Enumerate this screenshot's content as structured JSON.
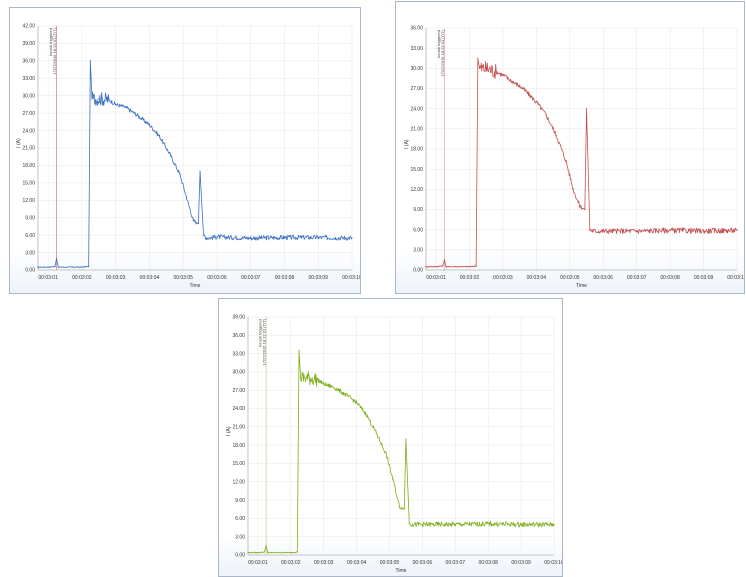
{
  "panels": [
    {
      "color": "#3a6fc4",
      "marker_color": "#e07070",
      "ylabel": "I (A)",
      "xlabel": "Time",
      "annotation_line1": "Inrush triggered",
      "annotation_line2": "17/27/2016 18:22:01 (T/T)",
      "yticks": [
        "0.00",
        "3.00",
        "6.00",
        "9.00",
        "12.00",
        "15.00",
        "18.00",
        "21.00",
        "24.00",
        "27.00",
        "30.00",
        "33.00",
        "36.00",
        "39.00",
        "42.00"
      ],
      "xticks": [
        "00:03:01",
        "00:03:02",
        "00:03:03",
        "00:03:04",
        "00:03:05",
        "00:03:06",
        "00:03:07",
        "00:03:08",
        "00:03:09",
        "00:03:10"
      ]
    },
    {
      "color": "#c45050",
      "marker_color": "#e8a0a0",
      "ylabel": "I (A)",
      "xlabel": "Time",
      "annotation_line1": "Inrush triggered",
      "annotation_line2": "17/27/2016 18:22:01 (T/T)",
      "yticks": [
        "0.00",
        "3.00",
        "6.00",
        "9.00",
        "12.00",
        "15.00",
        "18.00",
        "21.00",
        "24.00",
        "27.00",
        "30.00",
        "33.00",
        "36.00"
      ],
      "xticks": [
        "00:03:01",
        "00:03:02",
        "00:03:03",
        "00:03:04",
        "00:03:05",
        "00:03:06",
        "00:03:07",
        "00:03:08",
        "00:03:09",
        "00:03:10"
      ]
    },
    {
      "color": "#7fae1a",
      "marker_color": "#b8d080",
      "ylabel": "I (A)",
      "xlabel": "Time",
      "annotation_line1": "Inrush triggered",
      "annotation_line2": "17/27/2016 18:22:01 (T/T)",
      "yticks": [
        "0.00",
        "3.00",
        "6.00",
        "9.00",
        "12.00",
        "15.00",
        "18.00",
        "21.00",
        "24.00",
        "27.00",
        "30.00",
        "33.00",
        "36.00",
        "39.00"
      ],
      "xticks": [
        "00:03:01",
        "00:03:02",
        "00:03:03",
        "00:03:04",
        "00:03:05",
        "00:03:06",
        "00:03:07",
        "00:03:08",
        "00:03:09",
        "00:03:10"
      ]
    }
  ],
  "chart_data": [
    {
      "type": "line",
      "xlabel": "Time",
      "ylabel": "I (A)",
      "ylim": [
        0,
        42
      ],
      "xlim": [
        0.7,
        10.0
      ],
      "x_unit": "seconds after 00:03:00",
      "trigger_x": 1.25,
      "series": [
        {
          "x": [
            0.7,
            1.0,
            1.2,
            1.25,
            1.3,
            2.0,
            2.2,
            2.25,
            2.3,
            2.5,
            2.8,
            3.0,
            3.3,
            3.6,
            4.0,
            4.3,
            4.6,
            4.9,
            5.1,
            5.3,
            5.45,
            5.5,
            5.6,
            5.7,
            6.0,
            7.0,
            8.0,
            9.0,
            10.0
          ],
          "y": [
            0.5,
            0.5,
            0.6,
            2.0,
            0.5,
            0.5,
            0.6,
            36.0,
            29.5,
            29.5,
            29.3,
            28.5,
            28.0,
            26.8,
            25.0,
            23.0,
            20.0,
            16.5,
            12.5,
            8.5,
            8.0,
            17.0,
            6.0,
            5.5,
            5.7,
            5.5,
            5.6,
            5.6,
            5.5
          ]
        }
      ]
    },
    {
      "type": "line",
      "xlabel": "Time",
      "ylabel": "I (A)",
      "ylim": [
        0,
        36
      ],
      "xlim": [
        0.7,
        10.0
      ],
      "x_unit": "seconds after 00:03:00",
      "trigger_x": 1.25,
      "series": [
        {
          "x": [
            0.7,
            1.0,
            1.2,
            1.25,
            1.3,
            2.0,
            2.2,
            2.25,
            2.3,
            2.5,
            2.8,
            3.0,
            3.3,
            3.6,
            4.0,
            4.3,
            4.6,
            4.9,
            5.1,
            5.3,
            5.45,
            5.5,
            5.6,
            5.7,
            6.0,
            7.0,
            8.0,
            9.0,
            10.0
          ],
          "y": [
            0.5,
            0.5,
            0.6,
            1.5,
            0.5,
            0.5,
            0.6,
            31.5,
            30.0,
            30.0,
            29.5,
            29.0,
            28.0,
            27.0,
            25.0,
            23.0,
            20.0,
            16.0,
            12.0,
            9.5,
            9.0,
            24.0,
            6.0,
            5.8,
            5.8,
            5.8,
            5.9,
            5.8,
            5.9
          ]
        }
      ]
    },
    {
      "type": "line",
      "xlabel": "Time",
      "ylabel": "I (A)",
      "ylim": [
        0,
        39
      ],
      "xlim": [
        0.7,
        10.0
      ],
      "x_unit": "seconds after 00:03:00",
      "trigger_x": 1.25,
      "series": [
        {
          "x": [
            0.7,
            1.0,
            1.2,
            1.25,
            1.3,
            2.0,
            2.2,
            2.25,
            2.3,
            2.5,
            2.8,
            3.0,
            3.3,
            3.6,
            4.0,
            4.3,
            4.6,
            4.9,
            5.1,
            5.3,
            5.45,
            5.5,
            5.6,
            5.7,
            6.0,
            7.0,
            8.0,
            9.0,
            10.0
          ],
          "y": [
            0.4,
            0.4,
            0.5,
            1.5,
            0.4,
            0.4,
            0.5,
            33.5,
            29.0,
            29.0,
            28.8,
            28.0,
            27.5,
            26.5,
            25.0,
            23.0,
            20.0,
            16.5,
            12.5,
            8.0,
            7.5,
            19.0,
            5.2,
            5.0,
            5.0,
            5.0,
            5.1,
            5.0,
            5.0
          ]
        }
      ]
    }
  ]
}
